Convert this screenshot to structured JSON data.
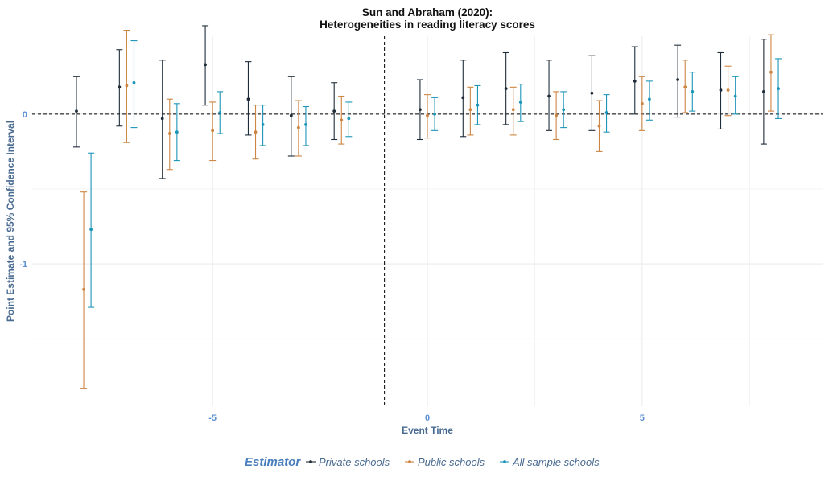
{
  "chart_data": {
    "type": "scatter",
    "title": [
      "Sun and Abraham (2020):",
      "Heterogeneities in reading literacy scores"
    ],
    "xlabel": "Event Time",
    "ylabel": "Point Estimate and 95% Confidence Interval",
    "x_ticks": [
      -5,
      0,
      5
    ],
    "x_tick_labels": [
      "-5",
      "0",
      "5"
    ],
    "y_ticks": [
      0,
      -1
    ],
    "y_tick_labels": [
      "0",
      "-1"
    ],
    "xlim": [
      -9.2,
      9.2
    ],
    "ylim": [
      -1.95,
      0.52
    ],
    "grid": true,
    "reference_lines": {
      "x": -1,
      "y": 0,
      "style": "dashed"
    },
    "legend": {
      "title": "Estimator",
      "position": "bottom"
    },
    "series": [
      {
        "name": "Private schools",
        "color": "#1f2d3a",
        "x_offset": -0.17,
        "points": [
          {
            "x": -8,
            "y": 0.02,
            "lo": -0.22,
            "hi": 0.25
          },
          {
            "x": -7,
            "y": 0.18,
            "lo": -0.08,
            "hi": 0.43
          },
          {
            "x": -6,
            "y": -0.03,
            "lo": -0.43,
            "hi": 0.36
          },
          {
            "x": -5,
            "y": 0.33,
            "lo": 0.06,
            "hi": 0.59
          },
          {
            "x": -4,
            "y": 0.1,
            "lo": -0.14,
            "hi": 0.35
          },
          {
            "x": -3,
            "y": -0.01,
            "lo": -0.28,
            "hi": 0.25
          },
          {
            "x": -2,
            "y": 0.02,
            "lo": -0.17,
            "hi": 0.21
          },
          {
            "x": 0,
            "y": 0.03,
            "lo": -0.17,
            "hi": 0.23
          },
          {
            "x": 1,
            "y": 0.11,
            "lo": -0.15,
            "hi": 0.36
          },
          {
            "x": 2,
            "y": 0.17,
            "lo": -0.07,
            "hi": 0.41
          },
          {
            "x": 3,
            "y": 0.12,
            "lo": -0.11,
            "hi": 0.36
          },
          {
            "x": 4,
            "y": 0.14,
            "lo": -0.11,
            "hi": 0.39
          },
          {
            "x": 5,
            "y": 0.22,
            "lo": 0.0,
            "hi": 0.45
          },
          {
            "x": 6,
            "y": 0.23,
            "lo": -0.02,
            "hi": 0.46
          },
          {
            "x": 7,
            "y": 0.16,
            "lo": -0.1,
            "hi": 0.41
          },
          {
            "x": 8,
            "y": 0.15,
            "lo": -0.2,
            "hi": 0.5
          }
        ]
      },
      {
        "name": "Public schools",
        "color": "#cd8542",
        "x_offset": 0,
        "points": [
          {
            "x": -8,
            "y": -1.17,
            "lo": -1.83,
            "hi": -0.52
          },
          {
            "x": -7,
            "y": 0.19,
            "lo": -0.19,
            "hi": 0.56
          },
          {
            "x": -6,
            "y": -0.13,
            "lo": -0.37,
            "hi": 0.1
          },
          {
            "x": -5,
            "y": -0.11,
            "lo": -0.31,
            "hi": 0.08
          },
          {
            "x": -4,
            "y": -0.12,
            "lo": -0.3,
            "hi": 0.06
          },
          {
            "x": -3,
            "y": -0.09,
            "lo": -0.28,
            "hi": 0.09
          },
          {
            "x": -2,
            "y": -0.04,
            "lo": -0.2,
            "hi": 0.12
          },
          {
            "x": 0,
            "y": -0.01,
            "lo": -0.16,
            "hi": 0.13
          },
          {
            "x": 1,
            "y": 0.03,
            "lo": -0.14,
            "hi": 0.18
          },
          {
            "x": 2,
            "y": 0.03,
            "lo": -0.14,
            "hi": 0.18
          },
          {
            "x": 3,
            "y": -0.01,
            "lo": -0.17,
            "hi": 0.15
          },
          {
            "x": 4,
            "y": -0.08,
            "lo": -0.25,
            "hi": 0.09
          },
          {
            "x": 5,
            "y": 0.07,
            "lo": -0.11,
            "hi": 0.25
          },
          {
            "x": 6,
            "y": 0.18,
            "lo": 0.01,
            "hi": 0.36
          },
          {
            "x": 7,
            "y": 0.16,
            "lo": -0.01,
            "hi": 0.32
          },
          {
            "x": 8,
            "y": 0.28,
            "lo": 0.02,
            "hi": 0.53
          }
        ]
      },
      {
        "name": "All sample schools",
        "color": "#1d95b8",
        "x_offset": 0.17,
        "points": [
          {
            "x": -8,
            "y": -0.77,
            "lo": -1.29,
            "hi": -0.26
          },
          {
            "x": -7,
            "y": 0.21,
            "lo": -0.09,
            "hi": 0.49
          },
          {
            "x": -6,
            "y": -0.12,
            "lo": -0.31,
            "hi": 0.07
          },
          {
            "x": -5,
            "y": 0.01,
            "lo": -0.13,
            "hi": 0.15
          },
          {
            "x": -4,
            "y": -0.07,
            "lo": -0.21,
            "hi": 0.06
          },
          {
            "x": -3,
            "y": -0.07,
            "lo": -0.21,
            "hi": 0.05
          },
          {
            "x": -2,
            "y": -0.03,
            "lo": -0.15,
            "hi": 0.08
          },
          {
            "x": 0,
            "y": 0.0,
            "lo": -0.11,
            "hi": 0.11
          },
          {
            "x": 1,
            "y": 0.06,
            "lo": -0.07,
            "hi": 0.19
          },
          {
            "x": 2,
            "y": 0.08,
            "lo": -0.05,
            "hi": 0.2
          },
          {
            "x": 3,
            "y": 0.03,
            "lo": -0.09,
            "hi": 0.15
          },
          {
            "x": 4,
            "y": 0.01,
            "lo": -0.12,
            "hi": 0.13
          },
          {
            "x": 5,
            "y": 0.1,
            "lo": -0.04,
            "hi": 0.22
          },
          {
            "x": 6,
            "y": 0.15,
            "lo": 0.02,
            "hi": 0.28
          },
          {
            "x": 7,
            "y": 0.12,
            "lo": 0.0,
            "hi": 0.25
          },
          {
            "x": 8,
            "y": 0.17,
            "lo": -0.03,
            "hi": 0.37
          }
        ]
      }
    ]
  },
  "colors": {
    "grid": "#ebebeb",
    "tick_text": "#5b8fd2",
    "axis_title_text": "#4a6b91",
    "legend_title_text": "#4a7fbf",
    "legend_label_text": "#4a6b91",
    "reference_line": "#000000"
  }
}
